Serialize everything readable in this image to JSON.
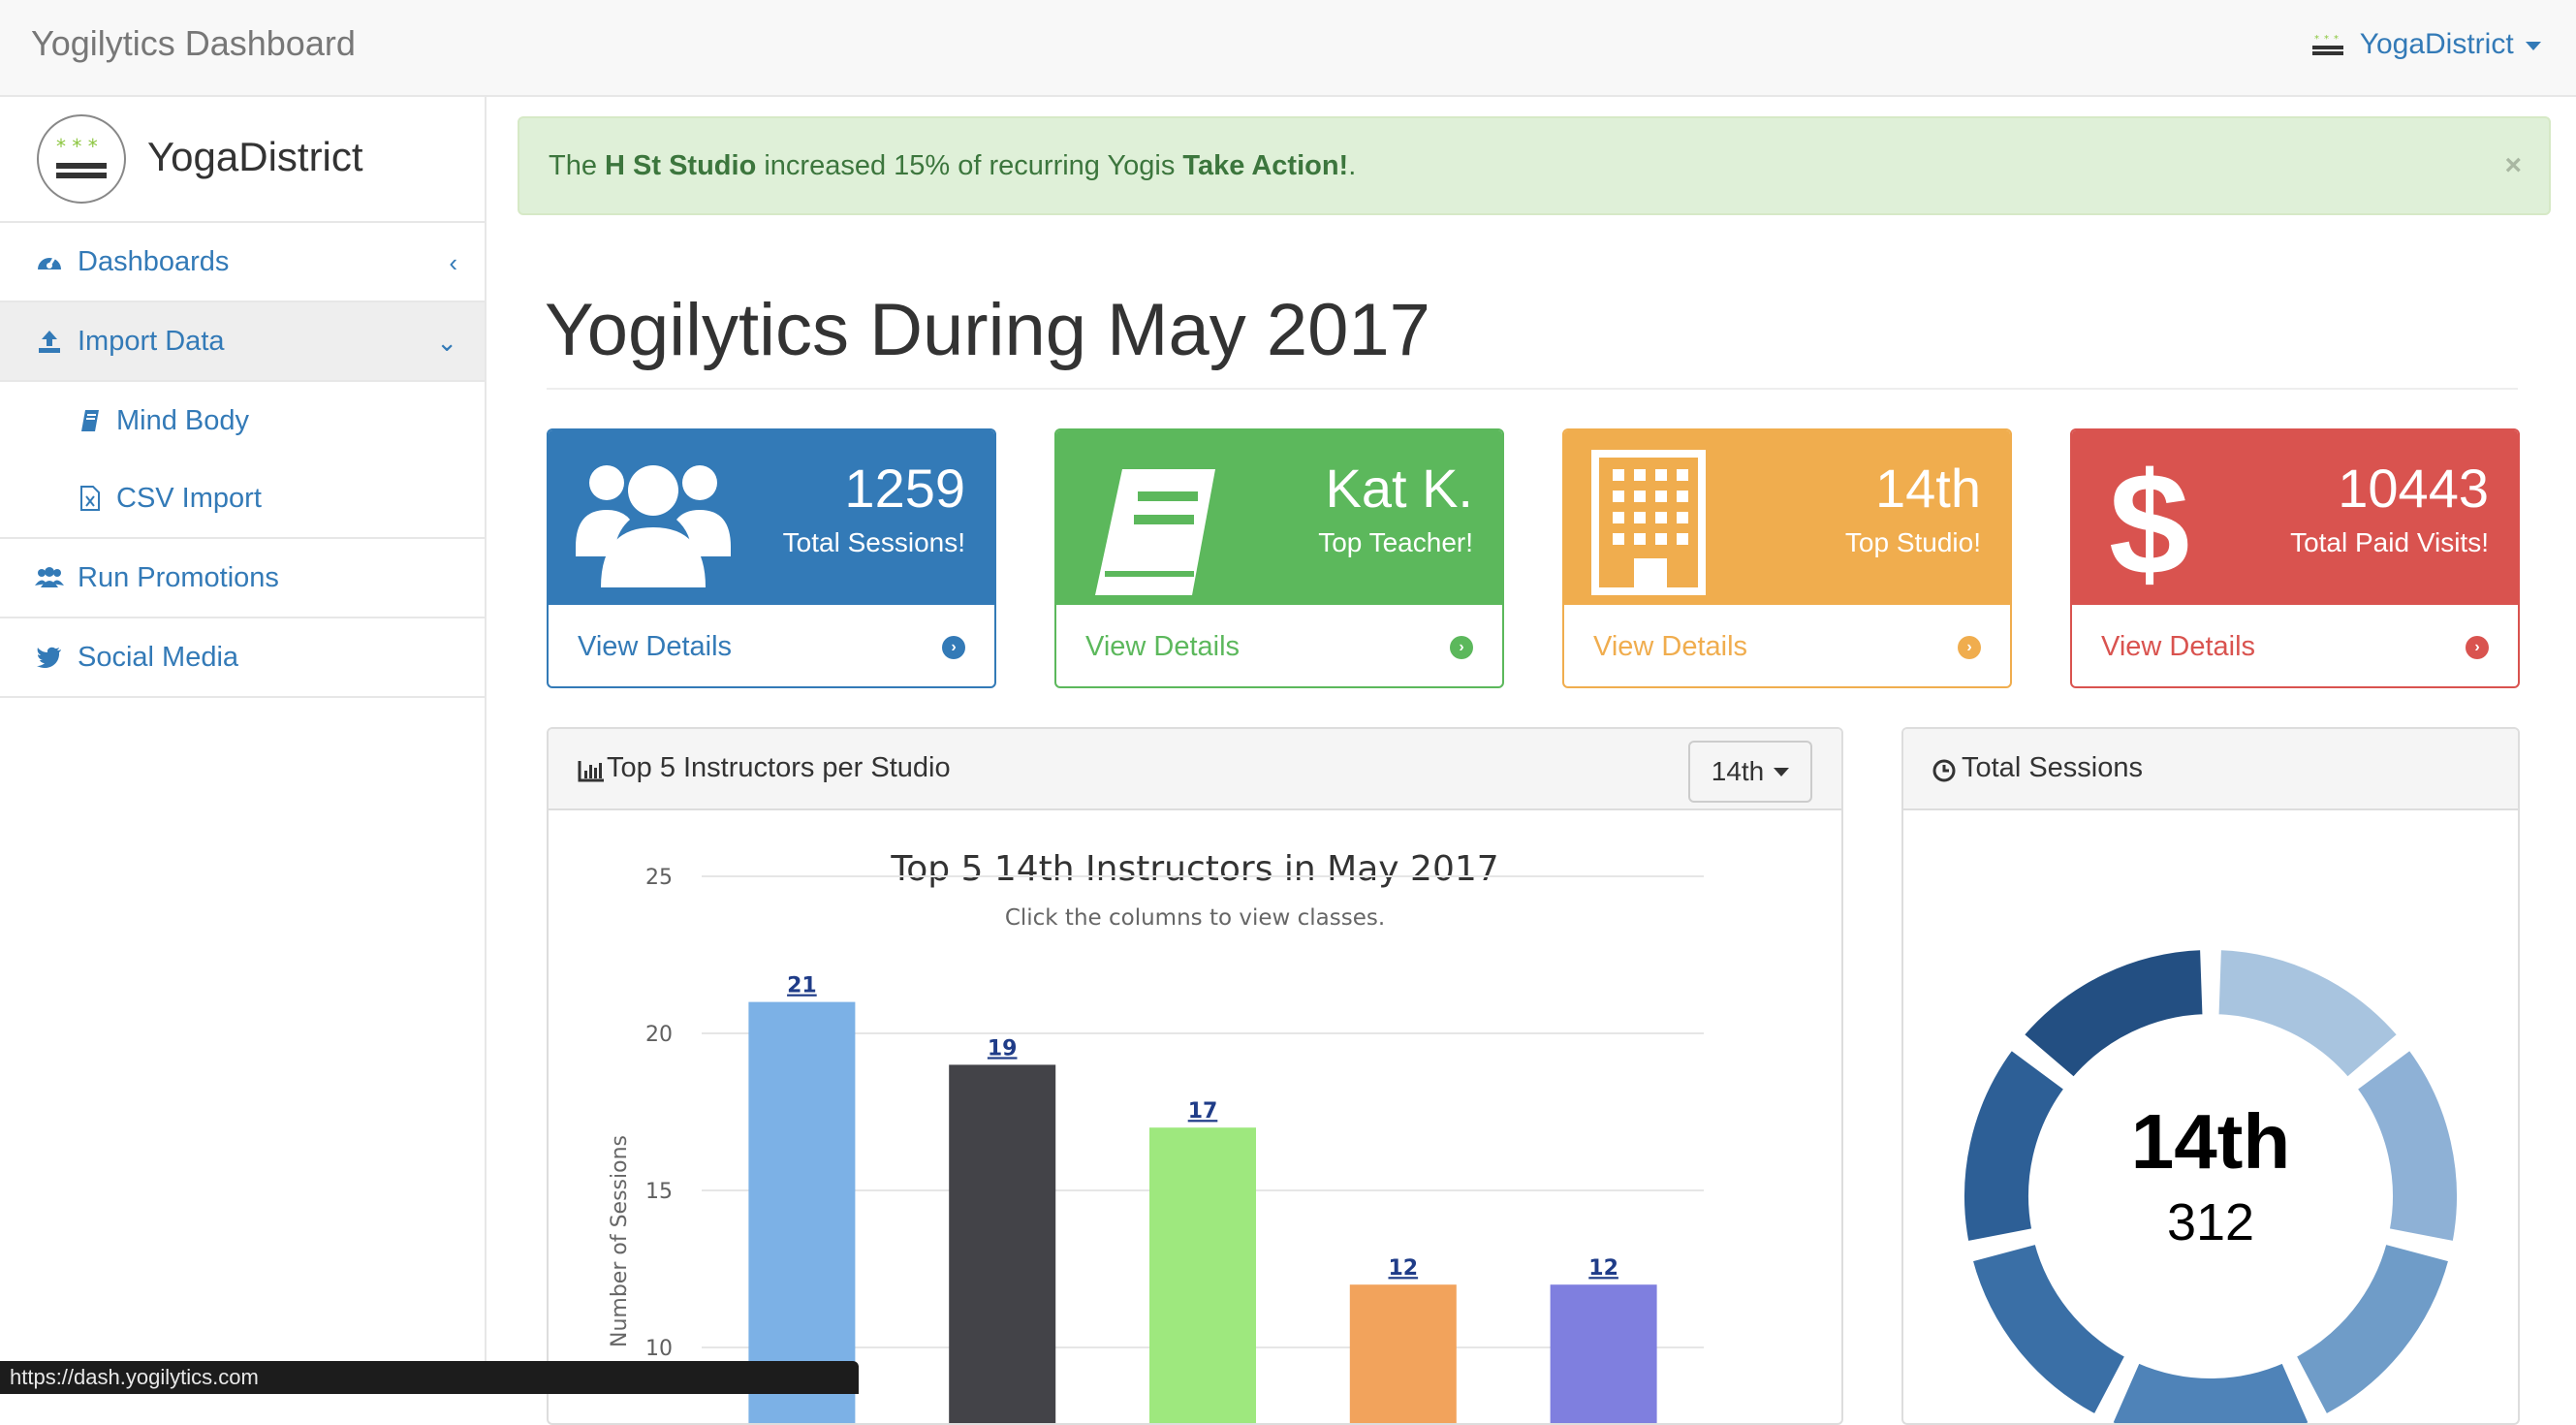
{
  "app": {
    "title": "Yogilytics Dashboard"
  },
  "user": {
    "name": "YogaDistrict"
  },
  "sidebar": {
    "profile_name": "YogaDistrict",
    "items": [
      {
        "label": "Dashboards",
        "icon": "dashboard-icon"
      },
      {
        "label": "Import Data",
        "icon": "upload-icon"
      },
      {
        "label": "Mind Body",
        "icon": "book-icon"
      },
      {
        "label": "CSV Import",
        "icon": "excel-file-icon"
      },
      {
        "label": "Run Promotions",
        "icon": "users-icon"
      },
      {
        "label": "Social Media",
        "icon": "twitter-icon"
      }
    ]
  },
  "alert": {
    "prefix": "The ",
    "studio": "H St Studio",
    "middle": " increased 15% of recurring Yogis ",
    "action": "Take Action!",
    "suffix": ".",
    "close": "×"
  },
  "page": {
    "title": "Yogilytics During May 2017"
  },
  "stats": [
    {
      "value": "1259",
      "label": "Total Sessions!",
      "link": "View Details",
      "color": "#337ab7",
      "icon": "users-icon"
    },
    {
      "value": "Kat K.",
      "label": "Top Teacher!",
      "link": "View Details",
      "color": "#5cb85c",
      "icon": "book-icon"
    },
    {
      "value": "14th",
      "label": "Top Studio!",
      "link": "View Details",
      "color": "#f0ad4e",
      "icon": "building-icon"
    },
    {
      "value": "10443",
      "label": "Total Paid Visits!",
      "link": "View Details",
      "color": "#d9534f",
      "icon": "dollar-icon"
    }
  ],
  "instructors_panel": {
    "heading": "Top 5 Instructors per Studio",
    "dropdown_value": "14th"
  },
  "sessions_panel": {
    "heading": "Total Sessions",
    "center_title": "14th",
    "center_value": "312"
  },
  "chart_data": {
    "type": "bar",
    "title": "Top 5 14th Instructors in May 2017",
    "subtitle": "Click the columns to view classes.",
    "ylabel": "Number of Sessions",
    "ylim": [
      10,
      25
    ],
    "yticks": [
      "25",
      "20",
      "15",
      "10"
    ],
    "values": [
      21,
      19,
      17,
      12,
      12
    ],
    "colors": [
      "#7cb1e6",
      "#434348",
      "#9ee87e",
      "#f2a35c",
      "#7f7fdf"
    ]
  },
  "donut": {
    "colors": [
      "#a8c4df",
      "#8eb1d6",
      "#6f9cc8",
      "#4f83b8",
      "#3a6fa6",
      "#2d5f96",
      "#234f82"
    ]
  },
  "statusbar": {
    "url": "https://dash.yogilytics.com"
  }
}
